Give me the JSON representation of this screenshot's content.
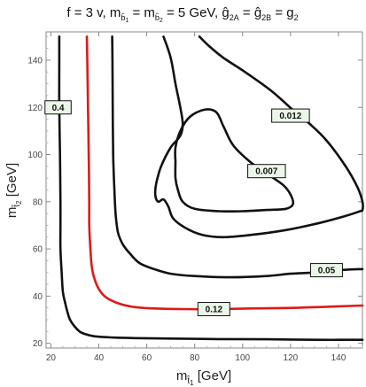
{
  "chart_data": {
    "type": "line",
    "title": "f = 3 v,   m_{b̂1} = m_{b̂2} = 5 GeV,   ĝ_{2A} = ĝ_{2B} = g_2",
    "title_parts": {
      "t1": "f = 3 v,   m",
      "t1_sub": "b̂",
      "t1_subsub": "1",
      "t2": " = m",
      "t2_sub": "b̂",
      "t2_subsub": "2",
      "t3": " = 5 GeV,   ĝ",
      "t3_sub": "2A",
      "t4": " = ĝ",
      "t4_sub": "2B",
      "t5": " = g",
      "t5_sub": "2"
    },
    "xlabel": "m",
    "xlabel_sub": "t̂",
    "xlabel_subsub": "1",
    "xlabel_unit": " [GeV]",
    "ylabel": "m",
    "ylabel_sub": "t̂",
    "ylabel_subsub": "2",
    "ylabel_unit": " [GeV]",
    "xlim": [
      18,
      150
    ],
    "ylim": [
      18,
      152
    ],
    "xticks": [
      20,
      40,
      60,
      80,
      100,
      120,
      140
    ],
    "yticks": [
      20,
      40,
      60,
      80,
      100,
      120,
      140
    ],
    "colors": {
      "black": "#111111",
      "red": "#e01818",
      "label_bg": "#eaf6e7"
    },
    "series": [
      {
        "name": "0.4",
        "color": "#111111",
        "label": {
          "text": "0.4",
          "x": 23,
          "y": 120
        },
        "points": [
          [
            150,
            21.5
          ],
          [
            130,
            21.5
          ],
          [
            110,
            21.7
          ],
          [
            90,
            21.8
          ],
          [
            70,
            22
          ],
          [
            55,
            22.2
          ],
          [
            45,
            22.5
          ],
          [
            38,
            23
          ],
          [
            34,
            24
          ],
          [
            32,
            25
          ],
          [
            30,
            27
          ],
          [
            28,
            30
          ],
          [
            27,
            33
          ],
          [
            26,
            37
          ],
          [
            25,
            42
          ],
          [
            24.5,
            50
          ],
          [
            24,
            60
          ],
          [
            24,
            70
          ],
          [
            24,
            80
          ],
          [
            23.8,
            100
          ],
          [
            23.5,
            120
          ],
          [
            23.5,
            140
          ],
          [
            23.5,
            150
          ]
        ]
      },
      {
        "name": "0.12",
        "color": "#e01818",
        "label": {
          "text": "0.12",
          "x": 88,
          "y": 34.5
        },
        "points": [
          [
            150,
            36
          ],
          [
            135,
            35.5
          ],
          [
            120,
            35
          ],
          [
            105,
            34.8
          ],
          [
            90,
            34.5
          ],
          [
            75,
            34.5
          ],
          [
            62,
            34.8
          ],
          [
            54,
            35.5
          ],
          [
            48,
            37
          ],
          [
            43,
            39.5
          ],
          [
            40,
            43
          ],
          [
            38,
            48
          ],
          [
            37,
            53
          ],
          [
            36.5,
            60
          ],
          [
            36,
            70
          ],
          [
            36,
            80
          ],
          [
            35.8,
            100
          ],
          [
            35.5,
            120
          ],
          [
            35.2,
            140
          ],
          [
            35,
            150
          ]
        ]
      },
      {
        "name": "0.05",
        "color": "#111111",
        "label": {
          "text": "0.05",
          "x": 135,
          "y": 51
        },
        "points": [
          [
            150,
            51.5
          ],
          [
            140,
            51
          ],
          [
            130,
            50
          ],
          [
            120,
            49.5
          ],
          [
            110,
            48.5
          ],
          [
            95,
            48
          ],
          [
            80,
            48.5
          ],
          [
            70,
            49.5
          ],
          [
            63,
            51.5
          ],
          [
            57,
            54
          ],
          [
            53,
            58
          ],
          [
            50,
            62
          ],
          [
            48,
            67
          ],
          [
            47,
            75
          ],
          [
            46.5,
            85
          ],
          [
            46,
            100
          ],
          [
            45.8,
            120
          ],
          [
            45.7,
            140
          ],
          [
            45.6,
            150
          ]
        ]
      },
      {
        "name": "0.012",
        "color": "#111111",
        "label": {
          "text": "0.012",
          "x": 120,
          "y": 116.5
        },
        "points": [
          [
            67,
            150
          ],
          [
            70,
            141
          ],
          [
            72,
            130
          ],
          [
            74,
            120
          ],
          [
            75,
            113
          ],
          [
            74,
            108
          ],
          [
            70,
            103
          ],
          [
            66,
            95
          ],
          [
            64,
            88
          ],
          [
            63.5,
            84
          ],
          [
            64,
            81
          ],
          [
            65,
            80
          ],
          [
            67,
            81
          ],
          [
            69,
            78
          ],
          [
            71,
            73
          ],
          [
            76,
            69
          ],
          [
            83,
            66
          ],
          [
            92,
            65
          ],
          [
            104,
            66
          ],
          [
            118,
            68
          ],
          [
            132,
            71
          ],
          [
            143,
            74
          ],
          [
            149,
            76
          ],
          [
            150,
            76.5
          ],
          [
            150,
            80
          ],
          [
            148,
            86
          ],
          [
            143,
            95
          ],
          [
            135,
            106
          ],
          [
            128,
            113
          ],
          [
            122,
            118
          ],
          [
            112,
            127
          ],
          [
            101,
            135
          ],
          [
            92,
            141
          ],
          [
            86,
            146
          ],
          [
            82,
            150
          ]
        ]
      },
      {
        "name": "0.007",
        "color": "#111111",
        "label": {
          "text": "0.007",
          "x": 110,
          "y": 93
        },
        "points": [
          [
            72,
            97
          ],
          [
            72,
            103
          ],
          [
            74,
            110
          ],
          [
            78,
            116
          ],
          [
            84,
            119
          ],
          [
            89,
            118
          ],
          [
            92,
            112
          ],
          [
            96,
            104
          ],
          [
            103,
            97
          ],
          [
            110,
            92
          ],
          [
            117,
            87
          ],
          [
            120,
            83
          ],
          [
            121,
            79
          ],
          [
            118,
            77
          ],
          [
            110,
            76.5
          ],
          [
            100,
            76
          ],
          [
            90,
            76
          ],
          [
            80,
            77
          ],
          [
            75,
            80
          ],
          [
            73,
            85
          ],
          [
            72,
            90
          ],
          [
            72,
            97
          ]
        ]
      }
    ]
  }
}
